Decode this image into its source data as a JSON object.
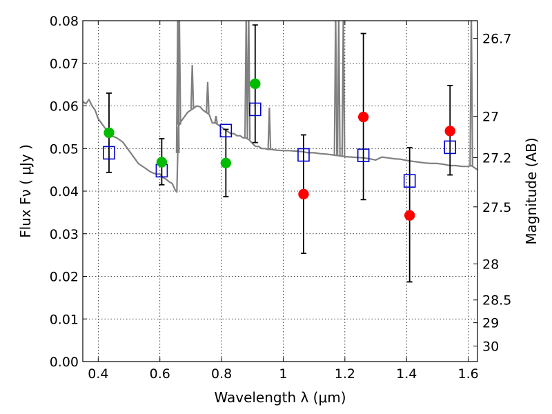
{
  "chart_data": {
    "type": "scatter",
    "title": "",
    "xlabel": "Wavelength  λ (μm)",
    "ylabel": "Flux  Fν  ( μJy )",
    "ylabel_right": "Magnitude (AB)",
    "xlim": [
      0.35,
      1.63
    ],
    "ylim": [
      0,
      0.08
    ],
    "grid": true,
    "x_ticks": [
      0.4,
      0.6,
      0.8,
      1.0,
      1.2,
      1.4,
      1.6
    ],
    "x_tick_labels": [
      "0.4",
      "0.6",
      "0.8",
      "1",
      "1.2",
      "1.4",
      "1.6"
    ],
    "y_ticks": [
      0,
      0.01,
      0.02,
      0.03,
      0.04,
      0.05,
      0.06,
      0.07,
      0.08
    ],
    "y_tick_labels": [
      "0.00",
      "0.01",
      "0.02",
      "0.03",
      "0.04",
      "0.05",
      "0.06",
      "0.07",
      "0.08"
    ],
    "right_ticks": [
      {
        "label": "26.7",
        "mag": 26.7
      },
      {
        "label": "27",
        "mag": 27.0
      },
      {
        "label": "27.2",
        "mag": 27.2
      },
      {
        "label": "27.5",
        "mag": 27.5
      },
      {
        "label": "28",
        "mag": 28.0
      },
      {
        "label": "28.5",
        "mag": 28.5
      },
      {
        "label": "29",
        "mag": 29.0
      },
      {
        "label": "30",
        "mag": 30.0
      }
    ],
    "colors": {
      "spectrum": "#808080",
      "optical_points": "#00bb00",
      "nir_points": "#ff0000",
      "model_squares": "#0000cc",
      "errorbars": "#000000"
    },
    "series": [
      {
        "kind": "errorbar",
        "x": [
          0.435,
          0.606,
          0.814,
          0.909,
          1.066,
          1.26,
          1.41,
          1.541
        ],
        "y": [
          0.0537,
          0.0468,
          0.0466,
          0.0652,
          0.0393,
          0.0574,
          0.0343,
          0.0541
        ],
        "yerr_low": [
          0.0444,
          0.0415,
          0.0387,
          0.0514,
          0.0254,
          0.038,
          0.0187,
          0.0438
        ],
        "yerr_high": [
          0.063,
          0.0523,
          0.0545,
          0.079,
          0.0532,
          0.077,
          0.0502,
          0.0648
        ]
      },
      {
        "kind": "model",
        "x": [
          0.435,
          0.606,
          0.814,
          0.909,
          1.066,
          1.26,
          1.41,
          1.541
        ],
        "y": [
          0.049,
          0.0448,
          0.0542,
          0.0592,
          0.0485,
          0.0484,
          0.0424,
          0.0503
        ]
      }
    ],
    "spectrum": {
      "x": [
        0.35,
        0.36,
        0.37,
        0.38,
        0.39,
        0.4,
        0.41,
        0.42,
        0.43,
        0.44,
        0.45,
        0.46,
        0.47,
        0.48,
        0.49,
        0.5,
        0.51,
        0.52,
        0.53,
        0.54,
        0.55,
        0.56,
        0.57,
        0.58,
        0.59,
        0.6,
        0.61,
        0.62,
        0.63,
        0.64,
        0.65,
        0.655,
        0.66,
        0.665,
        0.67,
        0.68,
        0.69,
        0.7,
        0.71,
        0.72,
        0.73,
        0.74,
        0.75,
        0.76,
        0.77,
        0.78,
        0.79,
        0.8,
        0.81,
        0.82,
        0.83,
        0.84,
        0.85,
        0.86,
        0.87,
        0.88,
        0.89,
        0.9,
        0.91,
        0.92,
        0.93,
        0.94,
        0.95,
        0.96,
        0.97,
        0.98,
        1.0,
        1.02,
        1.04,
        1.06,
        1.08,
        1.1,
        1.12,
        1.14,
        1.16,
        1.18,
        1.2,
        1.22,
        1.24,
        1.26,
        1.28,
        1.3,
        1.32,
        1.34,
        1.36,
        1.38,
        1.4,
        1.42,
        1.44,
        1.46,
        1.48,
        1.5,
        1.52,
        1.54,
        1.56,
        1.58,
        1.6,
        1.61,
        1.62,
        1.63
      ],
      "y": [
        0.061,
        0.0605,
        0.0615,
        0.06,
        0.059,
        0.057,
        0.056,
        0.055,
        0.054,
        0.053,
        0.0528,
        0.0525,
        0.052,
        0.0515,
        0.0505,
        0.0495,
        0.0485,
        0.0475,
        0.0465,
        0.046,
        0.0455,
        0.045,
        0.0445,
        0.0442,
        0.044,
        0.044,
        0.0432,
        0.0428,
        0.0422,
        0.0418,
        0.0402,
        0.0398,
        0.055,
        0.056,
        0.0565,
        0.0575,
        0.0585,
        0.059,
        0.0595,
        0.06,
        0.0598,
        0.059,
        0.0585,
        0.058,
        0.056,
        0.056,
        0.0555,
        0.055,
        0.0545,
        0.054,
        0.0535,
        0.0535,
        0.053,
        0.053,
        0.0525,
        0.0525,
        0.052,
        0.0512,
        0.0505,
        0.0505,
        0.05,
        0.05,
        0.0498,
        0.0498,
        0.0497,
        0.0496,
        0.0495,
        0.0495,
        0.0494,
        0.0493,
        0.049,
        0.049,
        0.0488,
        0.0487,
        0.0485,
        0.0483,
        0.0481,
        0.048,
        0.0479,
        0.0478,
        0.0476,
        0.0473,
        0.048,
        0.0478,
        0.0476,
        0.0475,
        0.0472,
        0.047,
        0.0468,
        0.0466,
        0.0465,
        0.0465,
        0.0463,
        0.046,
        0.046,
        0.0458,
        0.0458,
        0.046,
        0.0455,
        0.045
      ]
    },
    "spectrum_spikes": [
      {
        "x": 0.658,
        "y": 0.08
      },
      {
        "x": 0.663,
        "y": 0.08
      },
      {
        "x": 0.705,
        "y": 0.068
      },
      {
        "x": 0.755,
        "y": 0.064
      },
      {
        "x": 0.782,
        "y": 0.056
      },
      {
        "x": 0.88,
        "y": 0.08
      },
      {
        "x": 0.888,
        "y": 0.08
      },
      {
        "x": 0.955,
        "y": 0.058
      },
      {
        "x": 1.17,
        "y": 0.08
      },
      {
        "x": 1.18,
        "y": 0.08
      },
      {
        "x": 1.195,
        "y": 0.08
      },
      {
        "x": 1.61,
        "y": 0.08
      }
    ]
  }
}
